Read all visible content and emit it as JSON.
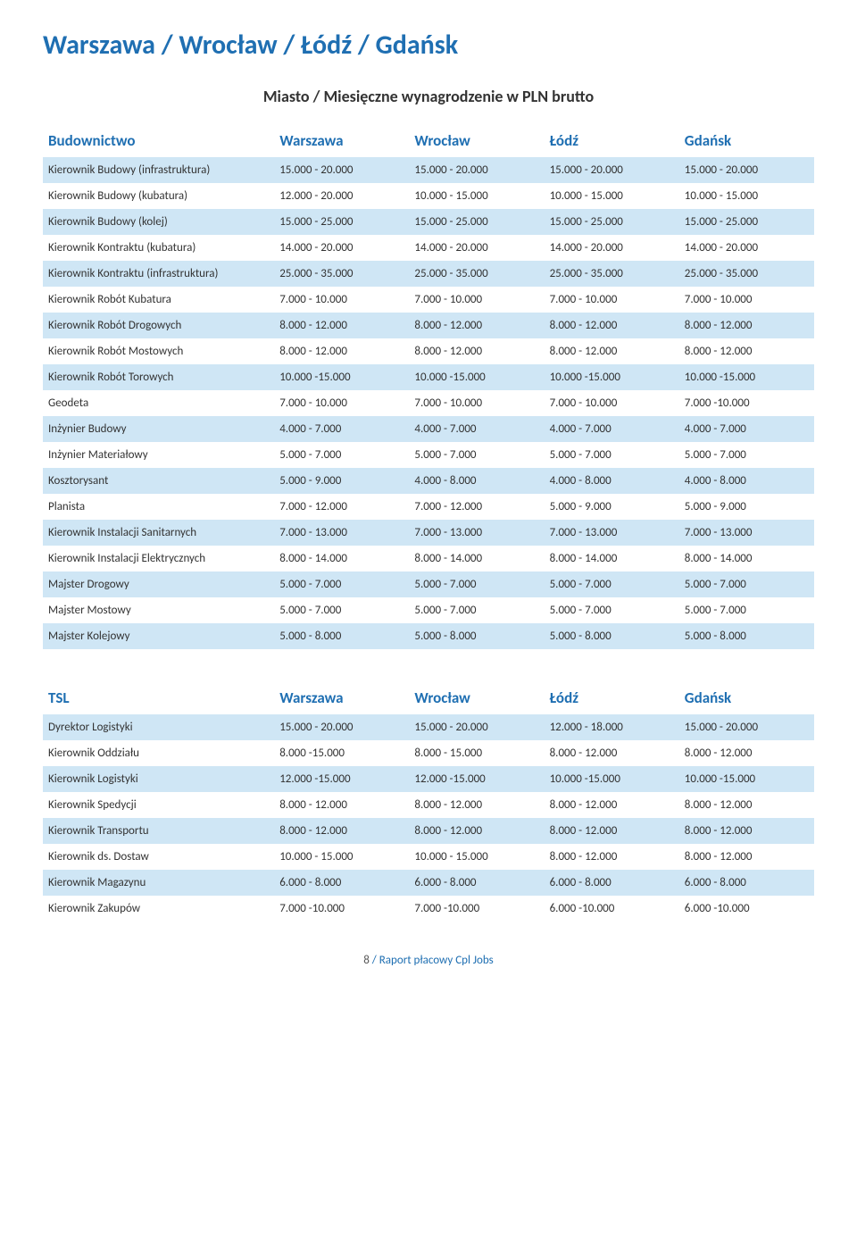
{
  "page_title": "Warszawa / Wrocław / Łódź / Gdańsk",
  "subtitle": "Miasto / Miesięczne wynagrodzenie w PLN brutto",
  "colors": {
    "accent": "#1f6fb2",
    "row_stripe": "#cfe6f5",
    "background": "#ffffff",
    "text": "#333333"
  },
  "tables": [
    {
      "section": "Budownictwo",
      "columns": [
        "Budownictwo",
        "Warszawa",
        "Wrocław",
        "Łódź",
        "Gdańsk"
      ],
      "rows": [
        [
          "Kierownik Budowy (infrastruktura)",
          "15.000 - 20.000",
          "15.000 - 20.000",
          "15.000 - 20.000",
          "15.000 - 20.000"
        ],
        [
          "Kierownik Budowy (kubatura)",
          "12.000 - 20.000",
          "10.000 - 15.000",
          "10.000 - 15.000",
          "10.000 - 15.000"
        ],
        [
          "Kierownik Budowy (kolej)",
          "15.000 - 25.000",
          "15.000 - 25.000",
          "15.000 - 25.000",
          "15.000 - 25.000"
        ],
        [
          "Kierownik Kontraktu (kubatura)",
          "14.000 - 20.000",
          "14.000 - 20.000",
          "14.000 - 20.000",
          "14.000 - 20.000"
        ],
        [
          "Kierownik Kontraktu (infrastruktura)",
          "25.000 - 35.000",
          "25.000 - 35.000",
          "25.000 - 35.000",
          "25.000 - 35.000"
        ],
        [
          "Kierownik Robót Kubatura",
          "7.000 - 10.000",
          "7.000 - 10.000",
          "7.000 - 10.000",
          "7.000 - 10.000"
        ],
        [
          "Kierownik Robót  Drogowych",
          "8.000 - 12.000",
          "8.000 - 12.000",
          "8.000 - 12.000",
          "8.000 - 12.000"
        ],
        [
          "Kierownik Robót Mostowych",
          "8.000 - 12.000",
          "8.000 - 12.000",
          "8.000 - 12.000",
          "8.000 - 12.000"
        ],
        [
          "Kierownik Robót Torowych",
          "10.000 -15.000",
          "10.000 -15.000",
          "10.000 -15.000",
          "10.000 -15.000"
        ],
        [
          "Geodeta",
          "7.000 - 10.000",
          "7.000 - 10.000",
          "7.000 - 10.000",
          "7.000 -10.000"
        ],
        [
          "Inżynier Budowy",
          "4.000 - 7.000",
          "4.000 - 7.000",
          "4.000 - 7.000",
          "4.000 - 7.000"
        ],
        [
          "Inżynier Materiałowy",
          "5.000 - 7.000",
          "5.000 - 7.000",
          "5.000 - 7.000",
          "5.000 - 7.000"
        ],
        [
          "Kosztorysant",
          "5.000 - 9.000",
          "4.000 - 8.000",
          "4.000 - 8.000",
          "4.000 - 8.000"
        ],
        [
          "Planista",
          "7.000 - 12.000",
          "7.000 - 12.000",
          "5.000 - 9.000",
          "5.000 - 9.000"
        ],
        [
          "Kierownik Instalacji Sanitarnych",
          "7.000 - 13.000",
          "7.000 - 13.000",
          "7.000 - 13.000",
          "7.000 - 13.000"
        ],
        [
          "Kierownik Instalacji Elektrycznych",
          "8.000 - 14.000",
          "8.000 - 14.000",
          "8.000 - 14.000",
          "8.000 - 14.000"
        ],
        [
          "Majster Drogowy",
          "5.000 - 7.000",
          "5.000 - 7.000",
          "5.000 - 7.000",
          "5.000 - 7.000"
        ],
        [
          "Majster Mostowy",
          "5.000 - 7.000",
          "5.000 - 7.000",
          "5.000 - 7.000",
          "5.000 - 7.000"
        ],
        [
          "Majster Kolejowy",
          "5.000 - 8.000",
          "5.000 - 8.000",
          "5.000 - 8.000",
          "5.000 - 8.000"
        ]
      ]
    },
    {
      "section": "TSL",
      "columns": [
        "TSL",
        "Warszawa",
        "Wrocław",
        "Łódź",
        "Gdańsk"
      ],
      "rows": [
        [
          "Dyrektor Logistyki",
          "15.000 - 20.000",
          "15.000 - 20.000",
          "12.000 - 18.000",
          "15.000 - 20.000"
        ],
        [
          "Kierownik Oddziału",
          "8.000 -15.000",
          "8.000 - 15.000",
          "8.000 - 12.000",
          "8.000 - 12.000"
        ],
        [
          "Kierownik Logistyki",
          "12.000 -15.000",
          "12.000 -15.000",
          "10.000 -15.000",
          "10.000 -15.000"
        ],
        [
          "Kierownik Spedycji",
          "8.000 - 12.000",
          "8.000 - 12.000",
          "8.000 - 12.000",
          "8.000 - 12.000"
        ],
        [
          "Kierownik Transportu",
          "8.000 - 12.000",
          "8.000 - 12.000",
          "8.000 - 12.000",
          "8.000 - 12.000"
        ],
        [
          "Kierownik ds. Dostaw",
          "10.000 - 15.000",
          "10.000 - 15.000",
          "8.000 - 12.000",
          "8.000 - 12.000"
        ],
        [
          "Kierownik Magazynu",
          "6.000 - 8.000",
          "6.000 - 8.000",
          "6.000 - 8.000",
          "6.000 - 8.000"
        ],
        [
          "Kierownik Zakupów",
          "7.000 -10.000",
          "7.000 -10.000",
          "6.000 -10.000",
          "6.000 -10.000"
        ]
      ]
    }
  ],
  "footer": {
    "page": "8",
    "sep": " / ",
    "title": "Raport płacowy Cpl Jobs"
  }
}
